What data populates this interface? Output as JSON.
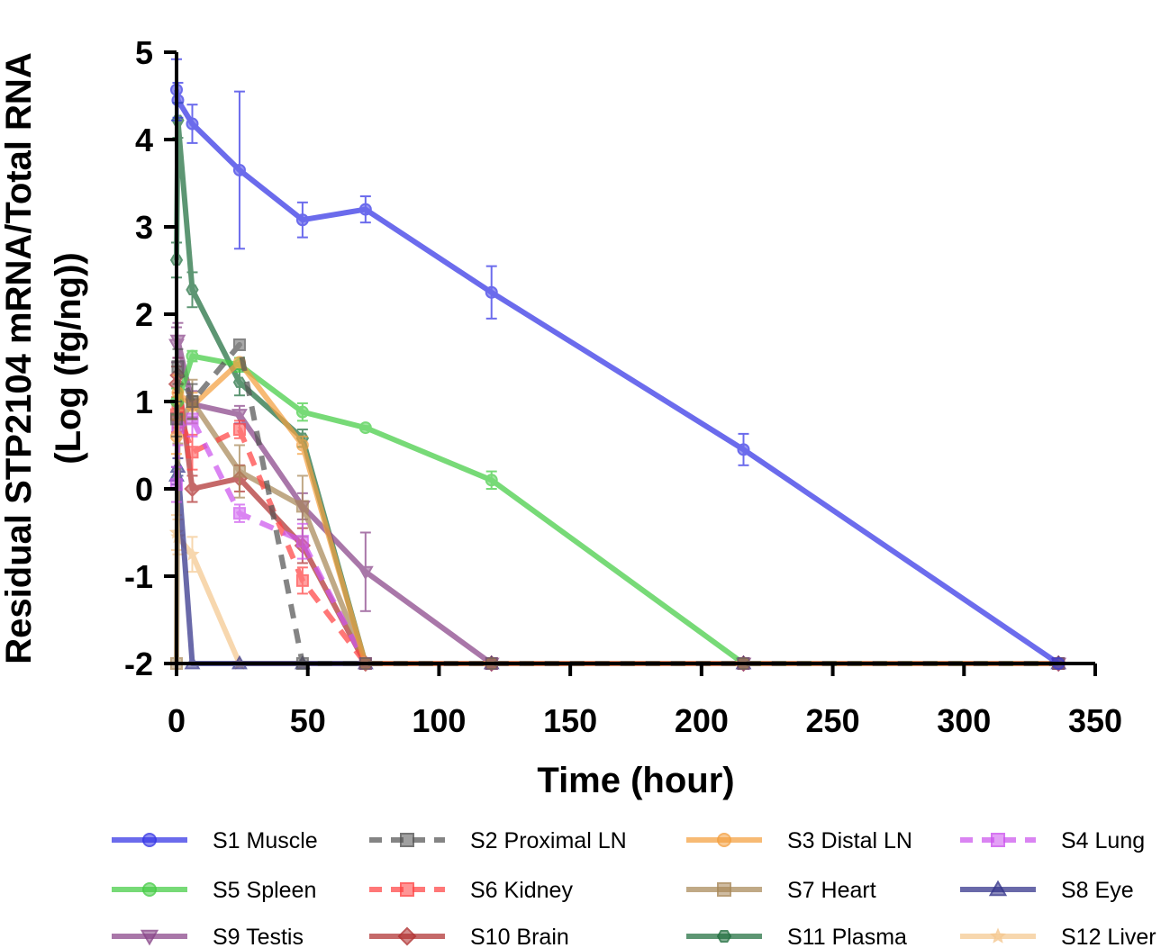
{
  "chart_data": {
    "type": "line",
    "title": "",
    "xlabel": "Time (hour)",
    "ylabel_line1": "Residual STP2104 mRNA/Total RNA",
    "ylabel_line2": "(Log (fg/ng))",
    "xlim": [
      0,
      350
    ],
    "ylim": [
      -2,
      5
    ],
    "xticks": [
      "0",
      "50",
      "100",
      "150",
      "200",
      "250",
      "300",
      "350"
    ],
    "yticks": [
      "-2",
      "-1",
      "0",
      "1",
      "2",
      "3",
      "4",
      "5"
    ],
    "grid": false,
    "legend_position": "bottom",
    "series": [
      {
        "name": "S1 Muscle",
        "color": "#3333e6",
        "marker": "circle",
        "dash": "solid",
        "points": [
          [
            0,
            4.57
          ],
          [
            0.5,
            4.45
          ],
          [
            6,
            4.18
          ],
          [
            24,
            3.65
          ],
          [
            48,
            3.08
          ],
          [
            72,
            3.2
          ],
          [
            120,
            2.25
          ],
          [
            216,
            0.45
          ],
          [
            336,
            -2
          ]
        ],
        "errors": [
          0.35,
          0.2,
          0.22,
          0.9,
          0.2,
          0.15,
          0.3,
          0.18,
          0
        ]
      },
      {
        "name": "S2 Proximal LN",
        "color": "#555555",
        "marker": "square",
        "dash": "dashed",
        "points": [
          [
            0,
            0.8
          ],
          [
            0.5,
            1.4
          ],
          [
            6,
            1.0
          ],
          [
            24,
            1.65
          ],
          [
            48,
            -2
          ],
          [
            72,
            -2
          ],
          [
            120,
            -2
          ],
          [
            216,
            -2
          ],
          [
            336,
            -2
          ]
        ],
        "errors": [
          0.2,
          0.2,
          0.2,
          0,
          0,
          0,
          0,
          0,
          0
        ]
      },
      {
        "name": "S3 Distal LN",
        "color": "#f4a040",
        "marker": "circle",
        "dash": "solid",
        "points": [
          [
            0,
            0.6
          ],
          [
            0.5,
            1.1
          ],
          [
            6,
            0.95
          ],
          [
            24,
            1.45
          ],
          [
            48,
            0.5
          ],
          [
            72,
            -2
          ],
          [
            120,
            -2
          ],
          [
            216,
            -2
          ],
          [
            336,
            -2
          ]
        ],
        "errors": [
          0.2,
          0.2,
          0.15,
          0,
          0.1,
          0,
          0,
          0,
          0
        ]
      },
      {
        "name": "S4 Lung",
        "color": "#cc55ee",
        "marker": "square",
        "dash": "dashed",
        "points": [
          [
            0,
            0.05
          ],
          [
            0.5,
            0.7
          ],
          [
            6,
            0.8
          ],
          [
            24,
            -0.28
          ],
          [
            48,
            -0.6
          ],
          [
            72,
            -2
          ],
          [
            120,
            -2
          ],
          [
            216,
            -2
          ],
          [
            336,
            -2
          ]
        ],
        "errors": [
          0.2,
          0.2,
          0.2,
          0.1,
          0.2,
          0,
          0,
          0,
          0
        ]
      },
      {
        "name": "S5 Spleen",
        "color": "#44cc44",
        "marker": "circle",
        "dash": "solid",
        "points": [
          [
            0,
            1.0
          ],
          [
            0.5,
            1.0
          ],
          [
            6,
            1.52
          ],
          [
            24,
            1.42
          ],
          [
            48,
            0.88
          ],
          [
            72,
            0.7
          ],
          [
            120,
            0.1
          ],
          [
            216,
            -2
          ],
          [
            336,
            -2
          ]
        ],
        "errors": [
          0.15,
          0.15,
          0.06,
          0.08,
          0.1,
          0.02,
          0.1,
          0,
          0
        ]
      },
      {
        "name": "S6 Kidney",
        "color": "#ff4444",
        "marker": "square",
        "dash": "dashed",
        "points": [
          [
            0,
            0.85
          ],
          [
            0.5,
            0.9
          ],
          [
            6,
            0.42
          ],
          [
            24,
            0.68
          ],
          [
            48,
            -1.05
          ],
          [
            72,
            -2
          ],
          [
            120,
            -2
          ],
          [
            216,
            -2
          ],
          [
            336,
            -2
          ]
        ],
        "errors": [
          0.2,
          0.2,
          0.2,
          0.1,
          0.15,
          0,
          0,
          0,
          0
        ]
      },
      {
        "name": "S7 Heart",
        "color": "#a88858",
        "marker": "square",
        "dash": "solid",
        "points": [
          [
            0,
            -2
          ],
          [
            0.5,
            0.72
          ],
          [
            6,
            1.0
          ],
          [
            24,
            0.2
          ],
          [
            48,
            -0.2
          ],
          [
            72,
            -2
          ],
          [
            120,
            -2
          ],
          [
            216,
            -2
          ],
          [
            336,
            -2
          ]
        ],
        "errors": [
          0,
          0.2,
          0.25,
          0.3,
          0.35,
          0,
          0,
          0,
          0
        ]
      },
      {
        "name": "S8 Eye",
        "color": "#303088",
        "marker": "triangle-up",
        "dash": "solid",
        "points": [
          [
            0,
            0.15
          ],
          [
            0.5,
            0.25
          ],
          [
            6,
            -2
          ],
          [
            24,
            -2
          ],
          [
            48,
            -2
          ],
          [
            72,
            -2
          ],
          [
            120,
            -2
          ],
          [
            216,
            -2
          ],
          [
            336,
            -2
          ]
        ],
        "errors": [
          0.1,
          0.1,
          0,
          0,
          0,
          0,
          0,
          0,
          0
        ]
      },
      {
        "name": "S9 Testis",
        "color": "#884488",
        "marker": "triangle-down",
        "dash": "solid",
        "points": [
          [
            0,
            1.65
          ],
          [
            0.5,
            1.7
          ],
          [
            6,
            0.97
          ],
          [
            24,
            0.85
          ],
          [
            48,
            -0.2
          ],
          [
            72,
            -0.95
          ],
          [
            120,
            -2
          ],
          [
            216,
            -2
          ],
          [
            336,
            -2
          ]
        ],
        "errors": [
          0.2,
          0.2,
          0.15,
          0.1,
          0.15,
          0.45,
          0,
          0,
          0
        ]
      },
      {
        "name": "S10 Brain",
        "color": "#b03030",
        "marker": "diamond",
        "dash": "solid",
        "points": [
          [
            0,
            1.2
          ],
          [
            0.5,
            1.3
          ],
          [
            6,
            0.0
          ],
          [
            24,
            0.12
          ],
          [
            48,
            -0.65
          ],
          [
            72,
            -2
          ],
          [
            120,
            -2
          ],
          [
            216,
            -2
          ],
          [
            336,
            -2
          ]
        ],
        "errors": [
          0.2,
          0.2,
          0.15,
          0.15,
          0.2,
          0,
          0,
          0,
          0
        ]
      },
      {
        "name": "S11 Plasma",
        "color": "#206e3e",
        "marker": "hexagon",
        "dash": "solid",
        "points": [
          [
            0,
            2.62
          ],
          [
            0.5,
            4.22
          ],
          [
            6,
            2.28
          ],
          [
            24,
            1.22
          ],
          [
            48,
            0.58
          ],
          [
            72,
            -2
          ],
          [
            120,
            -2
          ],
          [
            216,
            -2
          ],
          [
            336,
            -2
          ]
        ],
        "errors": [
          0.2,
          0.2,
          0.2,
          0.15,
          0.1,
          0,
          0,
          0,
          0
        ]
      },
      {
        "name": "S12 Liver",
        "color": "#f5c890",
        "marker": "star",
        "dash": "solid",
        "points": [
          [
            0,
            -0.5
          ],
          [
            0.5,
            -0.55
          ],
          [
            6,
            -0.75
          ],
          [
            24,
            -2
          ],
          [
            48,
            -2
          ],
          [
            72,
            -2
          ],
          [
            120,
            -2
          ],
          [
            216,
            -2
          ],
          [
            336,
            -2
          ]
        ],
        "errors": [
          0.2,
          0.2,
          0.2,
          0,
          0,
          0,
          0,
          0,
          0
        ]
      }
    ]
  }
}
